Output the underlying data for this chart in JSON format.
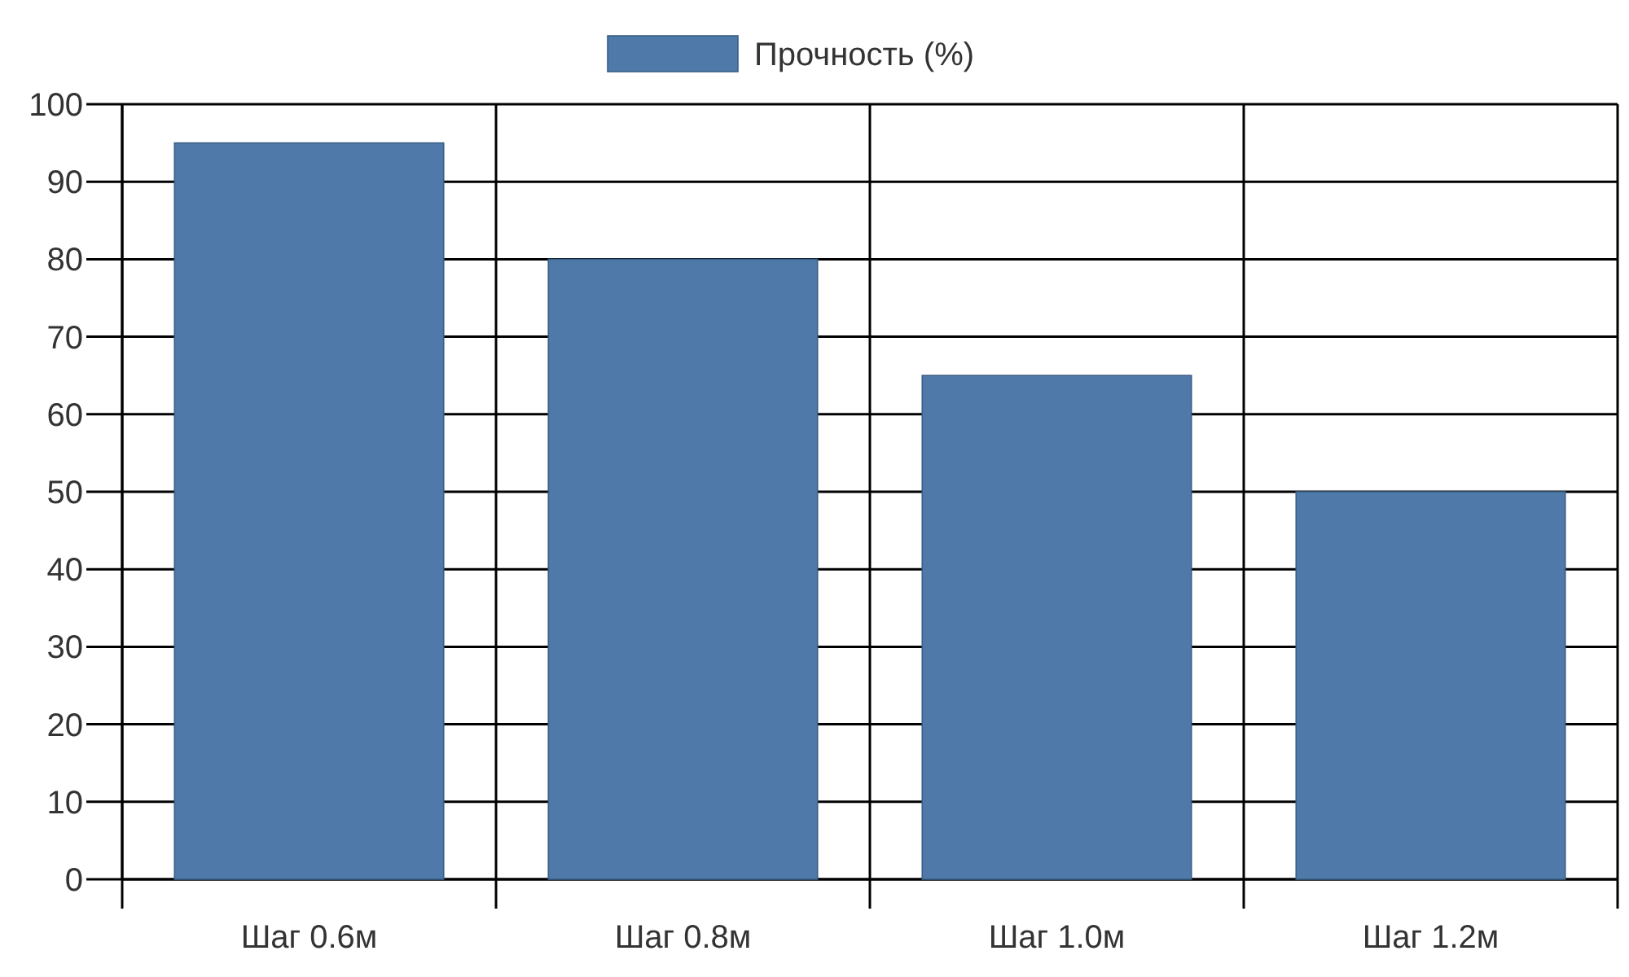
{
  "chart_data": {
    "type": "bar",
    "categories": [
      "Шаг 0.6м",
      "Шаг 0.8м",
      "Шаг 1.0м",
      "Шаг 1.2м"
    ],
    "series": [
      {
        "name": "Прочность (%)",
        "color": "#4e79a8",
        "values": [
          95,
          80,
          65,
          50
        ]
      }
    ],
    "ylim": [
      0,
      100
    ],
    "yticks": [
      0,
      10,
      20,
      30,
      40,
      50,
      60,
      70,
      80,
      90,
      100
    ],
    "grid": true,
    "legend": "top"
  }
}
